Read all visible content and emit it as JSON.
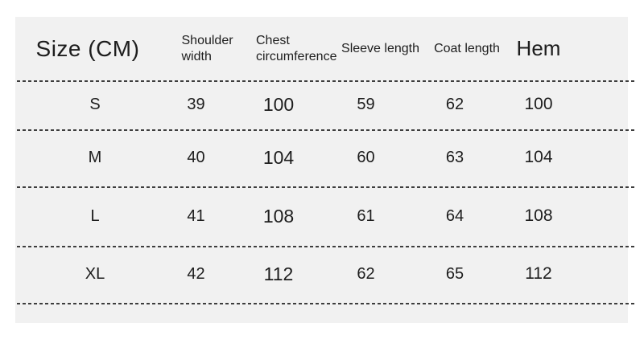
{
  "table": {
    "title": "Size (CM)",
    "unit": "CM",
    "columns": [
      {
        "key": "size",
        "label": "Size (CM)"
      },
      {
        "key": "shoulder",
        "label": "Shoulder width"
      },
      {
        "key": "chest",
        "label": "Chest circumference"
      },
      {
        "key": "sleeve",
        "label": "Sleeve length"
      },
      {
        "key": "coat",
        "label": "Coat length"
      },
      {
        "key": "hem",
        "label": "Hem"
      }
    ],
    "rows": [
      {
        "size": "S",
        "shoulder": "39",
        "chest": "100",
        "sleeve": "59",
        "coat": "62",
        "hem": "100"
      },
      {
        "size": "M",
        "shoulder": "40",
        "chest": "104",
        "sleeve": "60",
        "coat": "63",
        "hem": "104"
      },
      {
        "size": "L",
        "shoulder": "41",
        "chest": "108",
        "sleeve": "61",
        "coat": "64",
        "hem": "108"
      },
      {
        "size": "XL",
        "shoulder": "42",
        "chest": "112",
        "sleeve": "62",
        "coat": "65",
        "hem": "112"
      }
    ]
  },
  "colors": {
    "panel_background": "#f1f1f1",
    "page_background": "#ffffff",
    "text": "#1d1d1d",
    "dash": "#3d3d3d"
  }
}
